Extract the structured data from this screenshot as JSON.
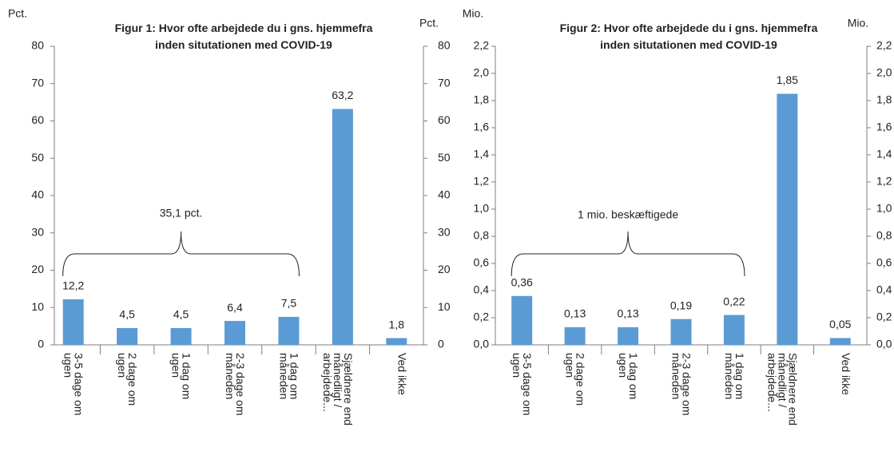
{
  "chart_data": [
    {
      "type": "bar",
      "title": "Figur 1:  Hvor ofte arbejdede du i gns. hjemmefra\ninden situtationen med COVID-19",
      "ylabel": "Pct.",
      "y2label": "Pct.",
      "categories": [
        "3-5 dage om\nugen",
        "2 dage om\nugen",
        "1 dag om\nugen",
        "2-3 dage om\nmåneden",
        "1 dag om\nmåneden",
        "Sjældnere end\nmånedligt /\narbejdede...",
        "Ved ikke"
      ],
      "values": [
        12.2,
        4.5,
        4.5,
        6.4,
        7.5,
        63.2,
        1.8
      ],
      "value_labels": [
        "12,2",
        "4,5",
        "4,5",
        "6,4",
        "7,5",
        "63,2",
        "1,8"
      ],
      "color": "#5b9bd5",
      "ylim": [
        0,
        80
      ],
      "yticks": [
        0,
        10,
        20,
        30,
        40,
        50,
        60,
        70,
        80
      ],
      "y2lim": [
        0,
        80
      ],
      "y2ticks": [
        0,
        10,
        20,
        30,
        40,
        50,
        60,
        70,
        80
      ],
      "annotation": "35,1 pct."
    },
    {
      "type": "bar",
      "title": "Figur 2:  Hvor ofte arbejdede du i gns. hjemmefra\ninden situtationen med COVID-19",
      "ylabel": "Mio.",
      "y2label": "Mio.",
      "categories": [
        "3-5 dage om\nugen",
        "2 dage om\nugen",
        "1 dag om\nugen",
        "2-3 dage om\nmåneden",
        "1 dag om\nmåneden",
        "Sjældnere end\nmånedligt /\narbejdede...",
        "Ved ikke"
      ],
      "values": [
        0.36,
        0.13,
        0.13,
        0.19,
        0.22,
        1.85,
        0.05
      ],
      "value_labels": [
        "0,36",
        "0,13",
        "0,13",
        "0,19",
        "0,22",
        "1,85",
        "0,05"
      ],
      "color": "#5b9bd5",
      "ylim": [
        0,
        2.2
      ],
      "yticks": [
        {
          "value": 0,
          "label": "0,0"
        },
        {
          "value": 0.2,
          "label": "0,2"
        },
        {
          "value": 0.4,
          "label": "0,4"
        },
        {
          "value": 0.6,
          "label": "0,6"
        },
        {
          "value": 0.8,
          "label": "0,8"
        },
        {
          "value": 1.0,
          "label": "1,0"
        },
        {
          "value": 1.2,
          "label": "1,2"
        },
        {
          "value": 1.4,
          "label": "1,4"
        },
        {
          "value": 1.6,
          "label": "1,6"
        },
        {
          "value": 1.8,
          "label": "1,8"
        },
        {
          "value": 2.0,
          "label": "2,0"
        },
        {
          "value": 2.2,
          "label": "2,2"
        }
      ],
      "y2lim": [
        0,
        2.2
      ],
      "y2ticks": [
        {
          "value": 0,
          "label": "0,0"
        },
        {
          "value": 0.2,
          "label": "0,2"
        },
        {
          "value": 0.4,
          "label": "0,4"
        },
        {
          "value": 0.6,
          "label": "0,6"
        },
        {
          "value": 0.8,
          "label": "0,8"
        },
        {
          "value": 1.0,
          "label": "1,0"
        },
        {
          "value": 1.2,
          "label": "1,2"
        },
        {
          "value": 1.4,
          "label": "1,4"
        },
        {
          "value": 1.6,
          "label": "1,6"
        },
        {
          "value": 1.8,
          "label": "1,8"
        },
        {
          "value": 2.0,
          "label": "2,0"
        },
        {
          "value": 2.2,
          "label": "2,2"
        }
      ],
      "annotation": "1 mio. beskæftigede"
    }
  ]
}
